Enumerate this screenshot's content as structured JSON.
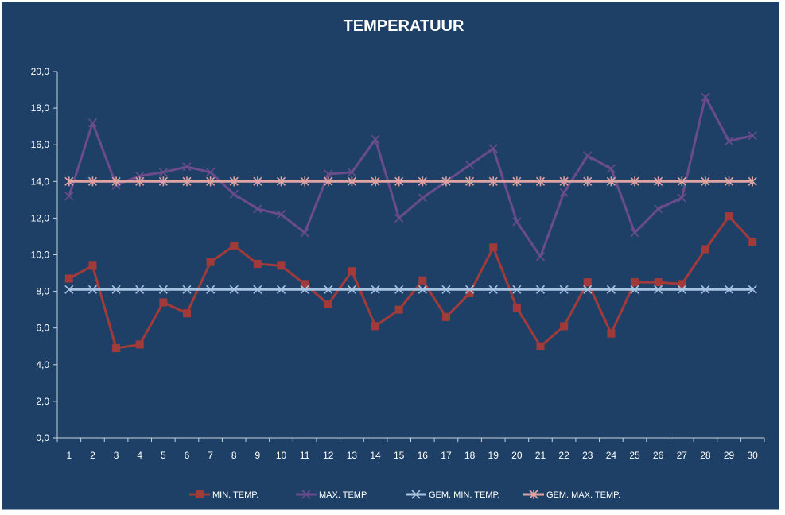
{
  "chart_data": {
    "type": "line",
    "title": "TEMPERATUUR",
    "xlabel": "",
    "ylabel": "",
    "ylim": [
      0,
      20
    ],
    "y_ticks": [
      "0,0",
      "2,0",
      "4,0",
      "6,0",
      "8,0",
      "10,0",
      "12,0",
      "14,0",
      "16,0",
      "18,0",
      "20,0"
    ],
    "categories": [
      "1",
      "2",
      "3",
      "4",
      "5",
      "6",
      "7",
      "8",
      "9",
      "10",
      "11",
      "12",
      "13",
      "14",
      "15",
      "16",
      "17",
      "18",
      "19",
      "20",
      "21",
      "22",
      "23",
      "24",
      "25",
      "26",
      "27",
      "28",
      "29",
      "30"
    ],
    "grid": false,
    "legend_position": "bottom",
    "series": [
      {
        "name": "MIN. TEMP.",
        "color": "#a33a3a",
        "marker": "square",
        "values": [
          8.7,
          9.4,
          4.9,
          5.1,
          7.4,
          6.8,
          9.6,
          10.5,
          9.5,
          9.4,
          8.4,
          7.3,
          9.1,
          6.1,
          7.0,
          8.6,
          6.6,
          7.9,
          10.4,
          7.1,
          5.0,
          6.1,
          8.5,
          5.7,
          8.5,
          8.5,
          8.4,
          10.3,
          12.1,
          10.7
        ]
      },
      {
        "name": "MAX. TEMP.",
        "color": "#6a4c8c",
        "marker": "x",
        "values": [
          13.2,
          17.2,
          13.8,
          14.3,
          14.5,
          14.8,
          14.5,
          13.3,
          12.5,
          12.2,
          11.2,
          14.4,
          14.5,
          16.3,
          12.0,
          13.1,
          14.0,
          14.9,
          15.8,
          11.8,
          9.9,
          13.4,
          15.4,
          14.7,
          11.2,
          12.5,
          13.1,
          18.6,
          16.2,
          16.5
        ]
      },
      {
        "name": "GEM. MIN. TEMP.",
        "color": "#a8c2e2",
        "marker": "x",
        "values": [
          8.1,
          8.1,
          8.1,
          8.1,
          8.1,
          8.1,
          8.1,
          8.1,
          8.1,
          8.1,
          8.1,
          8.1,
          8.1,
          8.1,
          8.1,
          8.1,
          8.1,
          8.1,
          8.1,
          8.1,
          8.1,
          8.1,
          8.1,
          8.1,
          8.1,
          8.1,
          8.1,
          8.1,
          8.1,
          8.1
        ]
      },
      {
        "name": "GEM. MAX. TEMP.",
        "color": "#dea3a3",
        "marker": "asterisk",
        "values": [
          14.0,
          14.0,
          14.0,
          14.0,
          14.0,
          14.0,
          14.0,
          14.0,
          14.0,
          14.0,
          14.0,
          14.0,
          14.0,
          14.0,
          14.0,
          14.0,
          14.0,
          14.0,
          14.0,
          14.0,
          14.0,
          14.0,
          14.0,
          14.0,
          14.0,
          14.0,
          14.0,
          14.0,
          14.0,
          14.0
        ]
      }
    ]
  }
}
